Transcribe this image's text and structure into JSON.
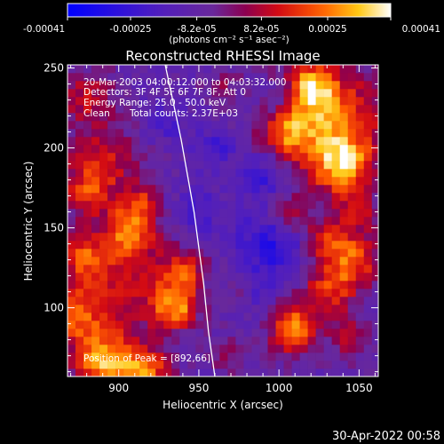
{
  "colorbar": {
    "tick_labels": [
      "-0.00041",
      "-0.00025",
      "-8.2e-05",
      "8.2e-05",
      "0.00025",
      "0.00041"
    ],
    "tick_values": [
      -0.00041,
      -0.00025,
      -8.2e-05,
      8.2e-05,
      0.00025,
      0.00041
    ],
    "range": [
      -0.00041,
      0.00041
    ],
    "unit_label": "(photons cm⁻² s⁻¹ asec⁻²)"
  },
  "chart_data": {
    "type": "heatmap",
    "title": "Reconstructed RHESSI Image",
    "xlabel": "Heliocentric X (arcsec)",
    "ylabel": "Heliocentric Y (arcsec)",
    "xlim": [
      868,
      1062
    ],
    "ylim": [
      57,
      252
    ],
    "x_ticks": [
      900,
      950,
      1000,
      1050
    ],
    "y_ticks": [
      100,
      150,
      200,
      250
    ],
    "x_tick_labels": [
      "900",
      "950",
      "1000",
      "1050"
    ],
    "y_tick_labels": [
      "100",
      "150",
      "200",
      "250"
    ],
    "limb_curve": [
      [
        929,
        252
      ],
      [
        939,
        205
      ],
      [
        947,
        160
      ],
      [
        953,
        115
      ],
      [
        956,
        85
      ],
      [
        960,
        57
      ]
    ],
    "peak": [
      892,
      66
    ],
    "annotations": {
      "time": "20-Mar-2003 04:00:12.000 to 04:03:32.000",
      "detectors": "Detectors: 3F 4F 5F 6F 7F 8F, Att 0",
      "energy": "Energy Range: 25.0 - 50.0 keV",
      "method": "Clean",
      "counts": "Total counts: 2.37E+03",
      "peak_label": "Position of Peak = [892,66]"
    },
    "blobs": [
      {
        "x": 1030,
        "y": 215,
        "r": 24,
        "v": 0.00036
      },
      {
        "x": 1005,
        "y": 212,
        "r": 10,
        "v": 0.00022
      },
      {
        "x": 1040,
        "y": 188,
        "r": 12,
        "v": 0.0003
      },
      {
        "x": 1020,
        "y": 238,
        "r": 10,
        "v": 0.0003
      },
      {
        "x": 888,
        "y": 190,
        "r": 16,
        "v": 0.00024
      },
      {
        "x": 880,
        "y": 232,
        "r": 12,
        "v": 0.0002
      },
      {
        "x": 915,
        "y": 168,
        "r": 8,
        "v": 0.00016
      },
      {
        "x": 907,
        "y": 150,
        "r": 11,
        "v": 0.0003
      },
      {
        "x": 878,
        "y": 132,
        "r": 10,
        "v": 0.00022
      },
      {
        "x": 900,
        "y": 118,
        "r": 22,
        "v": 0.0002
      },
      {
        "x": 940,
        "y": 122,
        "r": 10,
        "v": 0.00024
      },
      {
        "x": 892,
        "y": 66,
        "r": 14,
        "v": 0.0004
      },
      {
        "x": 935,
        "y": 100,
        "r": 10,
        "v": 0.00034
      },
      {
        "x": 872,
        "y": 95,
        "r": 12,
        "v": 0.00026
      },
      {
        "x": 918,
        "y": 62,
        "r": 10,
        "v": 0.00028
      },
      {
        "x": 1010,
        "y": 92,
        "r": 11,
        "v": 0.00024
      },
      {
        "x": 1032,
        "y": 112,
        "r": 11,
        "v": 0.00024
      },
      {
        "x": 1030,
        "y": 142,
        "r": 10,
        "v": 0.00024
      },
      {
        "x": 1048,
        "y": 130,
        "r": 12,
        "v": 0.00026
      },
      {
        "x": 1005,
        "y": 158,
        "r": 9,
        "v": 0.00018
      },
      {
        "x": 1008,
        "y": 80,
        "r": 9,
        "v": 0.00018
      },
      {
        "x": 1045,
        "y": 82,
        "r": 10,
        "v": 0.00016
      },
      {
        "x": 968,
        "y": 70,
        "r": 8,
        "v": 0.00012
      },
      {
        "x": 975,
        "y": 110,
        "r": 7,
        "v": 0.0001
      },
      {
        "x": 965,
        "y": 240,
        "r": 8,
        "v": 0.0001
      },
      {
        "x": 880,
        "y": 170,
        "r": 9,
        "v": 0.00018
      },
      {
        "x": 1050,
        "y": 160,
        "r": 9,
        "v": 0.00016
      },
      {
        "x": 995,
        "y": 140,
        "r": 14,
        "v": -0.00022
      },
      {
        "x": 990,
        "y": 182,
        "r": 11,
        "v": -0.00016
      },
      {
        "x": 960,
        "y": 200,
        "r": 9,
        "v": -0.00014
      },
      {
        "x": 1002,
        "y": 228,
        "r": 10,
        "v": -0.00014
      },
      {
        "x": 930,
        "y": 215,
        "r": 8,
        "v": -0.00012
      },
      {
        "x": 950,
        "y": 160,
        "r": 10,
        "v": -0.00012
      },
      {
        "x": 985,
        "y": 110,
        "r": 8,
        "v": -0.00012
      }
    ]
  },
  "footer": {
    "timestamp": "30-Apr-2022 00:58"
  }
}
